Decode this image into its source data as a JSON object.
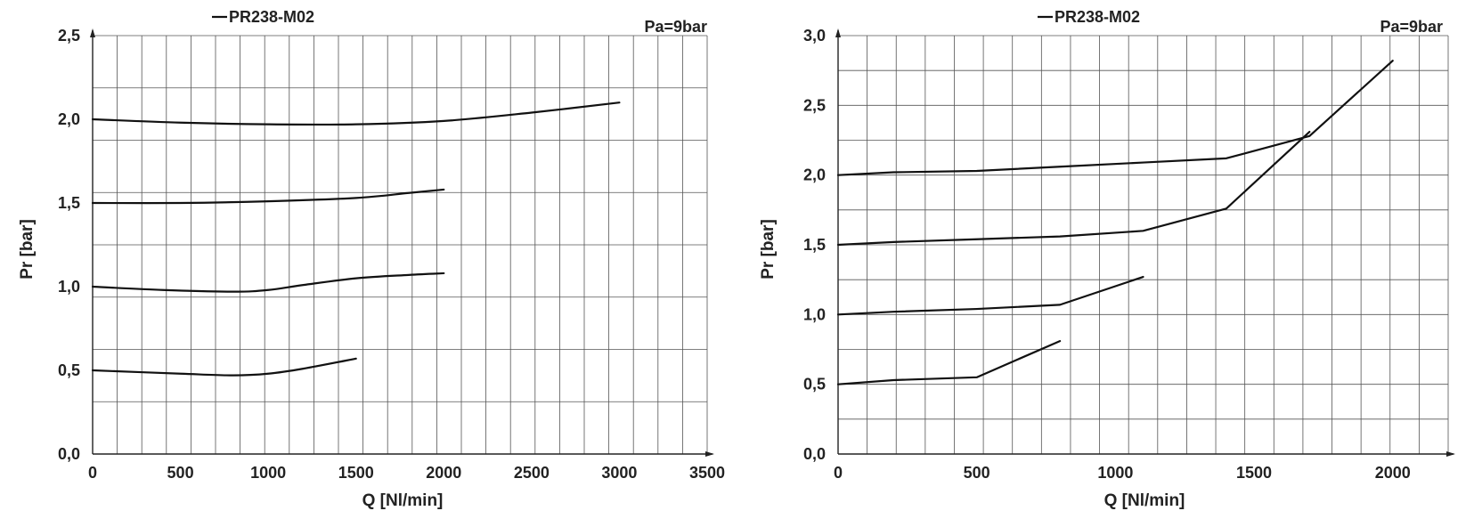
{
  "chart_data": [
    {
      "type": "line",
      "legend": [
        "PR238-M02"
      ],
      "annotation": "Pa=9bar",
      "xlabel": "Q [Nl/min]",
      "ylabel": "Pr [bar]",
      "xlim": [
        0,
        3500
      ],
      "ylim": [
        0,
        2.5
      ],
      "xtick_labels": [
        "0",
        "500",
        "1000",
        "1500",
        "2000",
        "2500",
        "3000",
        "3500"
      ],
      "ytick_labels": [
        "0,0",
        "0,5",
        "1,0",
        "1,5",
        "2,0",
        "2,5"
      ],
      "xticks": [
        0,
        500,
        1000,
        1500,
        2000,
        2500,
        3000,
        3500
      ],
      "yticks": [
        0,
        0.5,
        1.0,
        1.5,
        2.0,
        2.5
      ],
      "grid": true,
      "smooth": true,
      "series": [
        {
          "x": [
            0,
            500,
            800,
            1000,
            1200,
            1500
          ],
          "y": [
            0.5,
            0.48,
            0.47,
            0.48,
            0.51,
            0.57
          ]
        },
        {
          "x": [
            0,
            400,
            800,
            1000,
            1200,
            1500,
            1800,
            2000
          ],
          "y": [
            1.0,
            0.98,
            0.97,
            0.98,
            1.01,
            1.05,
            1.07,
            1.08
          ]
        },
        {
          "x": [
            0,
            500,
            1000,
            1500,
            1800,
            2000
          ],
          "y": [
            1.5,
            1.5,
            1.51,
            1.53,
            1.56,
            1.58
          ]
        },
        {
          "x": [
            0,
            500,
            1000,
            1500,
            2000,
            2500,
            3000
          ],
          "y": [
            2.0,
            1.98,
            1.97,
            1.97,
            1.99,
            2.04,
            2.1
          ]
        }
      ]
    },
    {
      "type": "line",
      "legend": [
        "PR238-M02"
      ],
      "annotation": "Pa=9bar",
      "xlabel": "Q [Nl/min]",
      "ylabel": "Pr [bar]",
      "xlim": [
        0,
        2200
      ],
      "ylim": [
        0,
        3.0
      ],
      "xtick_labels": [
        "0",
        "500",
        "1000",
        "1500",
        "2000"
      ],
      "ytick_labels": [
        "0,0",
        "0,5",
        "1,0",
        "1,5",
        "2,0",
        "2,5",
        "3,0"
      ],
      "xticks": [
        0,
        500,
        1000,
        1500,
        2000
      ],
      "yticks": [
        0,
        0.5,
        1.0,
        1.5,
        2.0,
        2.5,
        3.0
      ],
      "grid": true,
      "smooth": false,
      "series": [
        {
          "x": [
            0,
            200,
            500,
            800
          ],
          "y": [
            0.5,
            0.53,
            0.55,
            0.81
          ]
        },
        {
          "x": [
            0,
            200,
            500,
            800,
            1100
          ],
          "y": [
            1.0,
            1.02,
            1.04,
            1.07,
            1.27
          ]
        },
        {
          "x": [
            0,
            200,
            500,
            800,
            1100,
            1400,
            1700
          ],
          "y": [
            1.5,
            1.52,
            1.54,
            1.56,
            1.6,
            1.76,
            2.31
          ]
        },
        {
          "x": [
            0,
            200,
            500,
            800,
            1100,
            1400,
            1700,
            2000
          ],
          "y": [
            2.0,
            2.02,
            2.03,
            2.06,
            2.09,
            2.12,
            2.28,
            2.82
          ]
        }
      ]
    }
  ]
}
